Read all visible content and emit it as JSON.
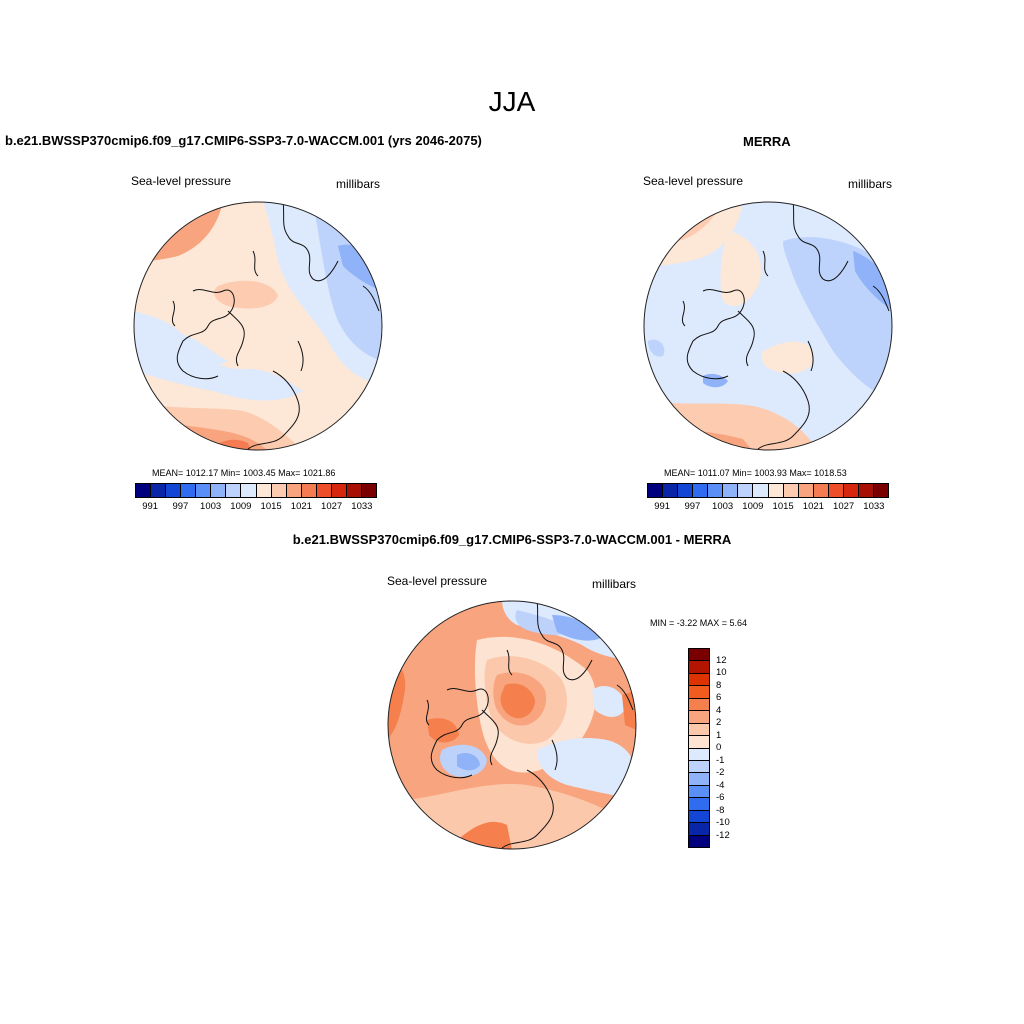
{
  "page": {
    "season": "JJA",
    "title_model": "b.e21.BWSSP370cmip6.f09_g17.CMIP6-SSP3-7.0-WACCM.001 (yrs 2046-2075)",
    "title_obs": "MERRA",
    "title_diff": "b.e21.BWSSP370cmip6.f09_g17.CMIP6-SSP3-7.0-WACCM.001 - MERRA"
  },
  "panels": [
    {
      "variable": "Sea-level pressure",
      "units": "millibars",
      "stats": "MEAN= 1012.17  Min= 1003.45  Max= 1021.86"
    },
    {
      "variable": "Sea-level pressure",
      "units": "millibars",
      "stats": "MEAN= 1011.07  Min= 1003.93  Max= 1018.53"
    },
    {
      "variable": "Sea-level pressure",
      "units": "millibars",
      "stats": "MIN =  -3.22 MAX =   5.64"
    }
  ],
  "colorbar_abs": {
    "colors": [
      "#00007f",
      "#0a26a8",
      "#1446d6",
      "#2f6cf0",
      "#5a8ff7",
      "#8fb2f9",
      "#bdd3fb",
      "#dde9fc",
      "#fde8d8",
      "#fccbb0",
      "#f8a47f",
      "#f47b52",
      "#ee4f2a",
      "#d7260e",
      "#a80f05",
      "#7a0000"
    ],
    "tick_labels": [
      "991",
      "997",
      "1003",
      "1009",
      "1015",
      "1021",
      "1027",
      "1033"
    ]
  },
  "colorbar_diff": {
    "colors": [
      "#7a0000",
      "#b31500",
      "#dc3300",
      "#f25b1e",
      "#f5804d",
      "#f8a57f",
      "#fbc8ac",
      "#fde3d2",
      "#dde9fc",
      "#bcd2fa",
      "#8fb2f9",
      "#5a8ff7",
      "#2f6cf0",
      "#1446d6",
      "#0a26a8",
      "#00007f"
    ],
    "tick_labels": [
      "12",
      "10",
      "8",
      "6",
      "4",
      "2",
      "1",
      "0",
      "-1",
      "-2",
      "-4",
      "-6",
      "-8",
      "-10",
      "-12"
    ]
  },
  "colors": {
    "land_outline": "#111111",
    "low_pressure": "#bdd3fb",
    "high_pressure": "#fccbb0"
  }
}
